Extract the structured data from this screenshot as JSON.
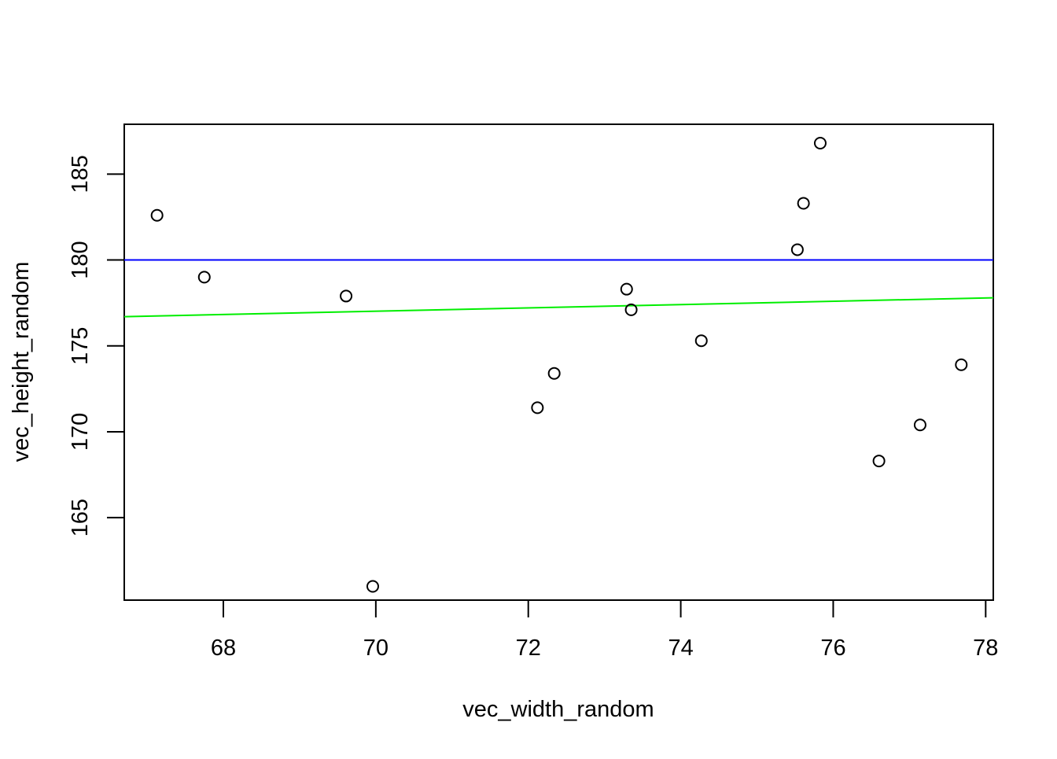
{
  "chart_data": {
    "type": "scatter",
    "title": "",
    "xlabel": "vec_width_random",
    "ylabel": "vec_height_random",
    "xlim": [
      66.7,
      78.1
    ],
    "ylim": [
      160.2,
      187.9
    ],
    "x_ticks": [
      68,
      70,
      72,
      74,
      76,
      78
    ],
    "y_ticks": [
      165,
      170,
      175,
      180,
      185
    ],
    "x_tick_labels": [
      "68",
      "70",
      "72",
      "74",
      "76",
      "78"
    ],
    "y_tick_labels": [
      "165",
      "170",
      "175",
      "180",
      "185"
    ],
    "grid": false,
    "legend": "none",
    "points": [
      {
        "x": 67.13,
        "y": 182.6
      },
      {
        "x": 67.75,
        "y": 179.0
      },
      {
        "x": 69.61,
        "y": 177.9
      },
      {
        "x": 69.96,
        "y": 161.0
      },
      {
        "x": 72.12,
        "y": 171.4
      },
      {
        "x": 72.34,
        "y": 173.4
      },
      {
        "x": 73.29,
        "y": 178.3
      },
      {
        "x": 73.35,
        "y": 177.1
      },
      {
        "x": 74.27,
        "y": 175.3
      },
      {
        "x": 75.53,
        "y": 180.6
      },
      {
        "x": 75.61,
        "y": 183.3
      },
      {
        "x": 75.83,
        "y": 186.8
      },
      {
        "x": 76.6,
        "y": 168.3
      },
      {
        "x": 77.14,
        "y": 170.4
      },
      {
        "x": 77.68,
        "y": 173.9
      }
    ],
    "lines": [
      {
        "kind": "horizontal",
        "y": 180.0,
        "color": "#0000ff"
      },
      {
        "kind": "regression",
        "x1": 66.7,
        "y1": 176.7,
        "x2": 78.1,
        "y2": 177.8,
        "color": "#00ee00"
      }
    ],
    "colors": {
      "points": "#000000",
      "axis": "#000000"
    }
  }
}
